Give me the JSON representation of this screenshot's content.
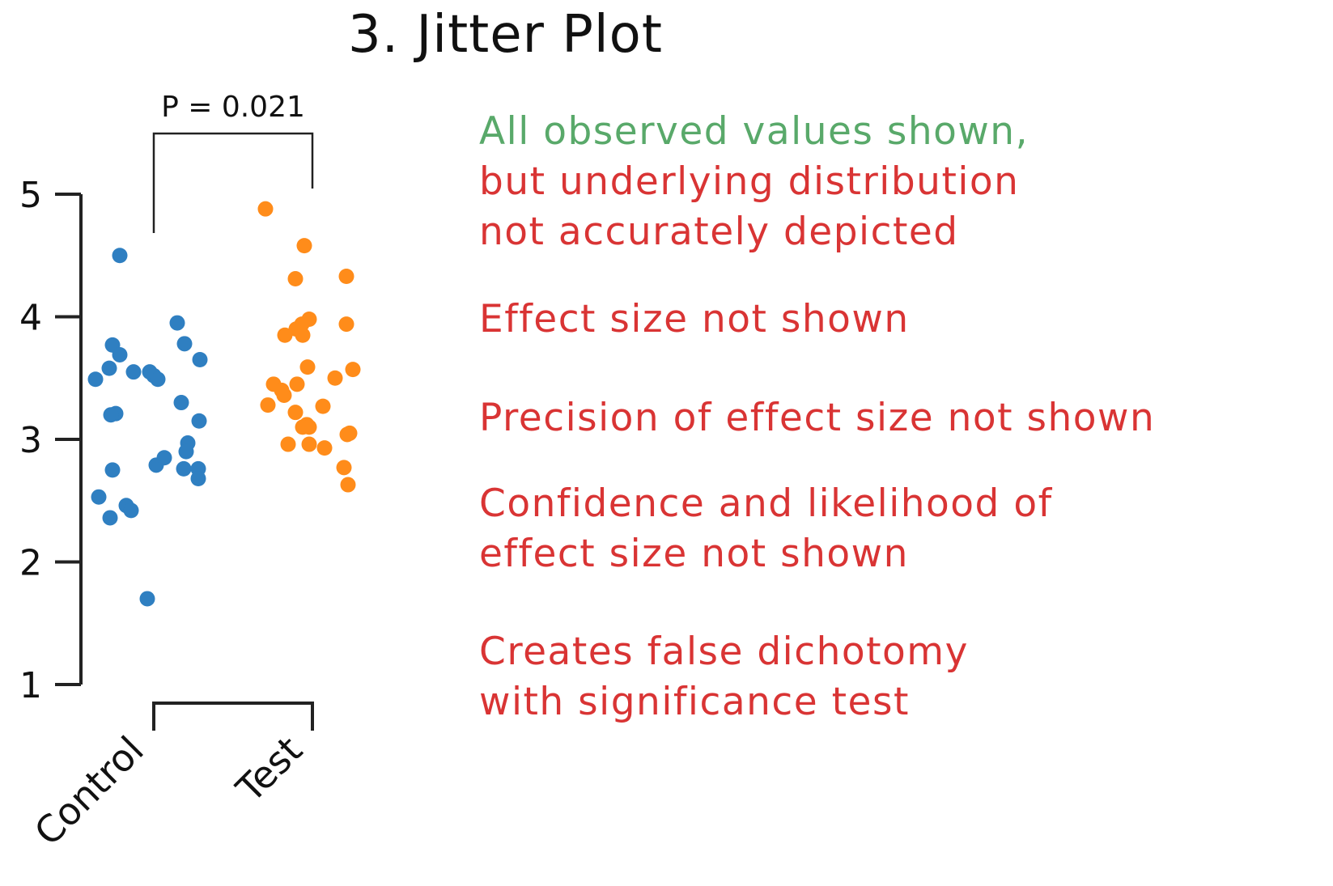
{
  "title": "3. Jitter Plot",
  "chart_data": {
    "type": "scatter",
    "subtype": "jitter",
    "categories": [
      "Control",
      "Test"
    ],
    "ylim": [
      1,
      5
    ],
    "yticks": [
      1,
      2,
      3,
      4,
      5
    ],
    "p_value_label": "P = 0.021",
    "series": [
      {
        "name": "Control",
        "color": "#2f7fc1",
        "values": [
          4.5,
          3.77,
          3.69,
          3.58,
          3.55,
          3.49,
          3.21,
          3.2,
          2.75,
          2.53,
          2.46,
          2.42,
          2.36,
          3.55,
          3.52,
          3.49,
          2.79,
          2.85,
          1.7,
          3.95,
          3.78,
          3.65,
          3.3,
          3.15,
          2.97,
          2.9,
          2.76,
          2.76,
          2.68
        ]
      },
      {
        "name": "Test",
        "color": "#ff8c1a",
        "values": [
          4.88,
          4.58,
          4.31,
          3.98,
          3.94,
          3.9,
          3.85,
          3.85,
          3.59,
          3.45,
          3.45,
          3.4,
          3.36,
          3.28,
          3.22,
          3.12,
          3.1,
          3.1,
          2.96,
          2.96,
          2.93,
          4.33,
          3.94,
          3.57,
          3.5,
          3.27,
          3.05,
          3.04,
          2.77,
          2.63
        ]
      }
    ]
  },
  "notes": [
    {
      "color": "#59a96a",
      "lines": [
        "All observed values shown,"
      ]
    },
    {
      "color": "#d93434",
      "lines": [
        "but underlying distribution",
        "not accurately depicted"
      ]
    },
    {
      "color": "#d93434",
      "lines": [
        "Effect size not shown"
      ]
    },
    {
      "color": "#d93434",
      "lines": [
        "Precision of effect size not shown"
      ]
    },
    {
      "color": "#d93434",
      "lines": [
        "Confidence and likelihood of",
        "effect size not shown"
      ]
    },
    {
      "color": "#d93434",
      "lines": [
        "Creates false dichotomy",
        "with significance test"
      ]
    }
  ]
}
